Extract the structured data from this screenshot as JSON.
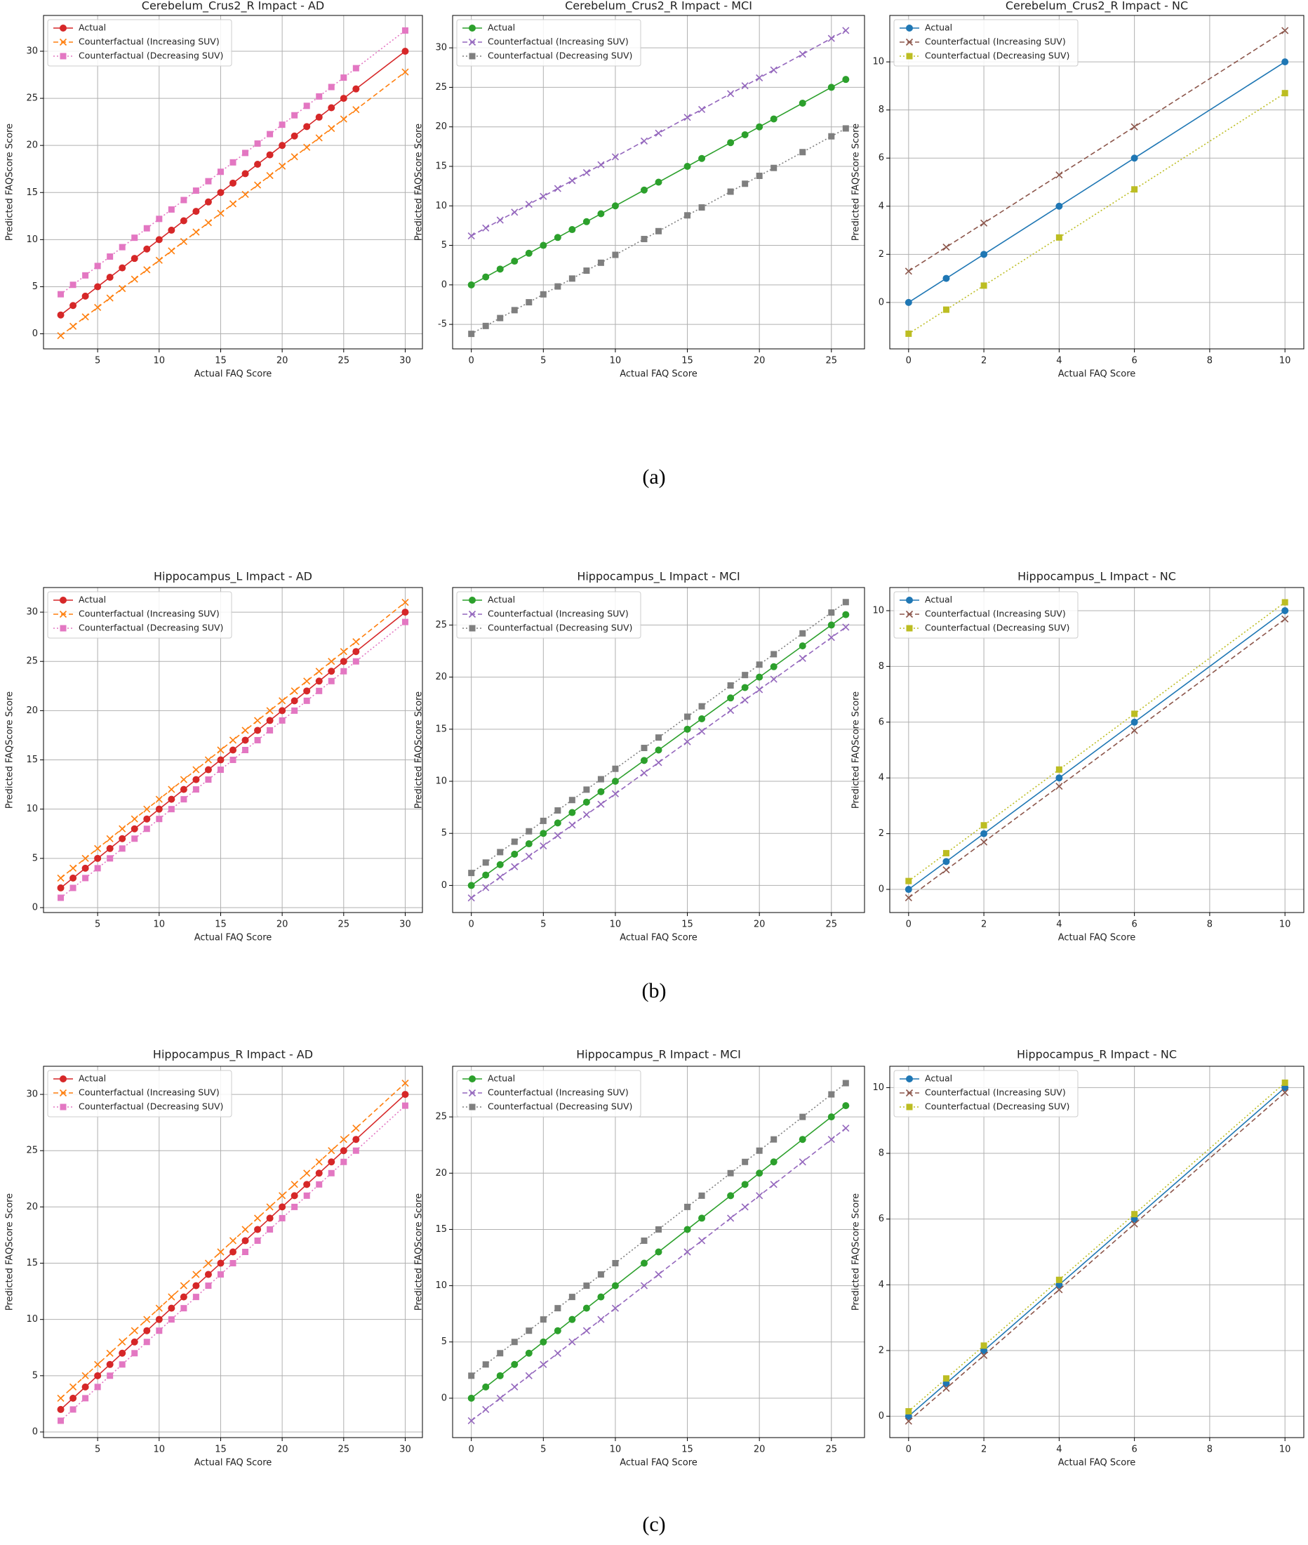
{
  "chart_data": [
    {
      "type": "line",
      "title": "Cerebelum_Crus2_R Impact - AD",
      "xlabel": "Actual FAQ Score",
      "ylabel": "Predicted FAQScore Score",
      "grid": true,
      "legend": "upper left",
      "x": [
        2,
        3,
        4,
        5,
        6,
        7,
        8,
        9,
        10,
        11,
        12,
        13,
        14,
        15,
        16,
        17,
        18,
        19,
        20,
        21,
        22,
        23,
        24,
        25,
        26,
        30
      ],
      "xlim": [
        0.6,
        31.4
      ],
      "xticks": [
        5,
        10,
        15,
        20,
        25,
        30
      ],
      "ylim": [
        -1.6,
        33.8
      ],
      "yticks": [
        0,
        5,
        10,
        15,
        20,
        25,
        30
      ],
      "series": [
        {
          "name": "Actual",
          "color": "#d62728",
          "linestyle": "solid",
          "marker": "o",
          "values": [
            2,
            3,
            4,
            5,
            6,
            7,
            8,
            9,
            10,
            11,
            12,
            13,
            14,
            15,
            16,
            17,
            18,
            19,
            20,
            21,
            22,
            23,
            24,
            25,
            26,
            30
          ]
        },
        {
          "name": "Counterfactual (Increasing SUV)",
          "color": "#ff7f0e",
          "linestyle": "dashed",
          "marker": "x",
          "values": [
            -0.2,
            0.8,
            1.8,
            2.8,
            3.8,
            4.8,
            5.8,
            6.8,
            7.8,
            8.8,
            9.8,
            10.8,
            11.8,
            12.8,
            13.8,
            14.8,
            15.8,
            16.8,
            17.8,
            18.8,
            19.8,
            20.8,
            21.8,
            22.8,
            23.8,
            27.8
          ]
        },
        {
          "name": "Counterfactual (Decreasing SUV)",
          "color": "#e377c2",
          "linestyle": "dotted",
          "marker": "s",
          "values": [
            4.2,
            5.2,
            6.2,
            7.2,
            8.2,
            9.2,
            10.2,
            11.2,
            12.2,
            13.2,
            14.2,
            15.2,
            16.2,
            17.2,
            18.2,
            19.2,
            20.2,
            21.2,
            22.2,
            23.2,
            24.2,
            25.2,
            26.2,
            27.2,
            28.2,
            32.2
          ]
        }
      ]
    },
    {
      "type": "line",
      "title": "Cerebelum_Crus2_R Impact - MCI",
      "xlabel": "Actual FAQ Score",
      "ylabel": "Predicted FAQScore Score",
      "grid": true,
      "legend": "upper left",
      "x": [
        0,
        1,
        2,
        3,
        4,
        5,
        6,
        7,
        8,
        9,
        10,
        12,
        13,
        15,
        16,
        18,
        19,
        20,
        21,
        23,
        25,
        26
      ],
      "xlim": [
        -1.3,
        27.3
      ],
      "xticks": [
        0,
        5,
        10,
        15,
        20,
        25
      ],
      "ylim": [
        -8.1,
        34.1
      ],
      "yticks": [
        -5,
        0,
        5,
        10,
        15,
        20,
        25,
        30
      ],
      "series": [
        {
          "name": "Actual",
          "color": "#2ca02c",
          "linestyle": "solid",
          "marker": "o",
          "values": [
            0,
            1,
            2,
            3,
            4,
            5,
            6,
            7,
            8,
            9,
            10,
            12,
            13,
            15,
            16,
            18,
            19,
            20,
            21,
            23,
            25,
            26
          ]
        },
        {
          "name": "Counterfactual (Increasing SUV)",
          "color": "#9467bd",
          "linestyle": "dashed",
          "marker": "x",
          "values": [
            6.2,
            7.2,
            8.2,
            9.2,
            10.2,
            11.2,
            12.2,
            13.2,
            14.2,
            15.2,
            16.2,
            18.2,
            19.2,
            21.2,
            22.2,
            24.2,
            25.2,
            26.2,
            27.2,
            29.2,
            31.2,
            32.2
          ]
        },
        {
          "name": "Counterfactual (Decreasing SUV)",
          "color": "#7f7f7f",
          "linestyle": "dotted",
          "marker": "s",
          "values": [
            -6.2,
            -5.2,
            -4.2,
            -3.2,
            -2.2,
            -1.2,
            -0.2,
            0.8,
            1.8,
            2.8,
            3.8,
            5.8,
            6.8,
            8.8,
            9.8,
            11.8,
            12.8,
            13.8,
            14.8,
            16.8,
            18.8,
            19.8
          ]
        }
      ]
    },
    {
      "type": "line",
      "title": "Cerebelum_Crus2_R Impact - NC",
      "xlabel": "Actual FAQ Score",
      "ylabel": "Predicted FAQScore Score",
      "grid": true,
      "legend": "upper left",
      "x": [
        0,
        1,
        2,
        4,
        6,
        10
      ],
      "xlim": [
        -0.5,
        10.5
      ],
      "xticks": [
        0,
        2,
        4,
        6,
        8,
        10
      ],
      "ylim": [
        -1.93,
        11.93
      ],
      "yticks": [
        0,
        2,
        4,
        6,
        8,
        10
      ],
      "series": [
        {
          "name": "Actual",
          "color": "#1f77b4",
          "linestyle": "solid",
          "marker": "o",
          "values": [
            0,
            1,
            2,
            4,
            6,
            10
          ]
        },
        {
          "name": "Counterfactual (Increasing SUV)",
          "color": "#8c564b",
          "linestyle": "dashed",
          "marker": "x",
          "values": [
            1.3,
            2.3,
            3.3,
            5.3,
            7.3,
            11.3
          ]
        },
        {
          "name": "Counterfactual (Decreasing SUV)",
          "color": "#bcbd22",
          "linestyle": "dotted",
          "marker": "s",
          "values": [
            -1.3,
            -0.3,
            0.7,
            2.7,
            4.7,
            8.7
          ]
        }
      ]
    },
    {
      "type": "line",
      "title": "Hippocampus_L Impact - AD",
      "xlabel": "Actual FAQ Score",
      "ylabel": "Predicted FAQScore Score",
      "grid": true,
      "legend": "upper left",
      "x": [
        2,
        3,
        4,
        5,
        6,
        7,
        8,
        9,
        10,
        11,
        12,
        13,
        14,
        15,
        16,
        17,
        18,
        19,
        20,
        21,
        22,
        23,
        24,
        25,
        26,
        30
      ],
      "xlim": [
        0.6,
        31.4
      ],
      "xticks": [
        5,
        10,
        15,
        20,
        25,
        30
      ],
      "ylim": [
        -0.5,
        32.5
      ],
      "yticks": [
        0,
        5,
        10,
        15,
        20,
        25,
        30
      ],
      "series": [
        {
          "name": "Actual",
          "color": "#d62728",
          "linestyle": "solid",
          "marker": "o",
          "values": [
            2,
            3,
            4,
            5,
            6,
            7,
            8,
            9,
            10,
            11,
            12,
            13,
            14,
            15,
            16,
            17,
            18,
            19,
            20,
            21,
            22,
            23,
            24,
            25,
            26,
            30
          ]
        },
        {
          "name": "Counterfactual (Increasing SUV)",
          "color": "#ff7f0e",
          "linestyle": "dashed",
          "marker": "x",
          "values": [
            3,
            4,
            5,
            6,
            7,
            8,
            9,
            10,
            11,
            12,
            13,
            14,
            15,
            16,
            17,
            18,
            19,
            20,
            21,
            22,
            23,
            24,
            25,
            26,
            27,
            31
          ]
        },
        {
          "name": "Counterfactual (Decreasing SUV)",
          "color": "#e377c2",
          "linestyle": "dotted",
          "marker": "s",
          "values": [
            1,
            2,
            3,
            4,
            5,
            6,
            7,
            8,
            9,
            10,
            11,
            12,
            13,
            14,
            15,
            16,
            17,
            18,
            19,
            20,
            21,
            22,
            23,
            24,
            25,
            29
          ]
        }
      ]
    },
    {
      "type": "line",
      "title": "Hippocampus_L Impact - MCI",
      "xlabel": "Actual FAQ Score",
      "ylabel": "Predicted FAQScore Score",
      "grid": true,
      "legend": "upper left",
      "x": [
        0,
        1,
        2,
        3,
        4,
        5,
        6,
        7,
        8,
        9,
        10,
        12,
        13,
        15,
        16,
        18,
        19,
        20,
        21,
        23,
        25,
        26
      ],
      "xlim": [
        -1.3,
        27.3
      ],
      "xticks": [
        0,
        5,
        10,
        15,
        20,
        25
      ],
      "ylim": [
        -2.6,
        28.6
      ],
      "yticks": [
        0,
        5,
        10,
        15,
        20,
        25
      ],
      "series": [
        {
          "name": "Actual",
          "color": "#2ca02c",
          "linestyle": "solid",
          "marker": "o",
          "values": [
            0,
            1,
            2,
            3,
            4,
            5,
            6,
            7,
            8,
            9,
            10,
            12,
            13,
            15,
            16,
            18,
            19,
            20,
            21,
            23,
            25,
            26
          ]
        },
        {
          "name": "Counterfactual (Increasing SUV)",
          "color": "#9467bd",
          "linestyle": "dashed",
          "marker": "x",
          "values": [
            -1.2,
            -0.2,
            0.8,
            1.8,
            2.8,
            3.8,
            4.8,
            5.8,
            6.8,
            7.8,
            8.8,
            10.8,
            11.8,
            13.8,
            14.8,
            16.8,
            17.8,
            18.8,
            19.8,
            21.8,
            23.8,
            24.8
          ]
        },
        {
          "name": "Counterfactual (Decreasing SUV)",
          "color": "#7f7f7f",
          "linestyle": "dotted",
          "marker": "s",
          "values": [
            1.2,
            2.2,
            3.2,
            4.2,
            5.2,
            6.2,
            7.2,
            8.2,
            9.2,
            10.2,
            11.2,
            13.2,
            14.2,
            16.2,
            17.2,
            19.2,
            20.2,
            21.2,
            22.2,
            24.2,
            26.2,
            27.2
          ]
        }
      ]
    },
    {
      "type": "line",
      "title": "Hippocampus_L Impact - NC",
      "xlabel": "Actual FAQ Score",
      "ylabel": "Predicted FAQScore Score",
      "grid": true,
      "legend": "upper left",
      "x": [
        0,
        1,
        2,
        4,
        6,
        10
      ],
      "xlim": [
        -0.5,
        10.5
      ],
      "xticks": [
        0,
        2,
        4,
        6,
        8,
        10
      ],
      "ylim": [
        -0.83,
        10.83
      ],
      "yticks": [
        0,
        2,
        4,
        6,
        8,
        10
      ],
      "series": [
        {
          "name": "Actual",
          "color": "#1f77b4",
          "linestyle": "solid",
          "marker": "o",
          "values": [
            0,
            1,
            2,
            4,
            6,
            10
          ]
        },
        {
          "name": "Counterfactual (Increasing SUV)",
          "color": "#8c564b",
          "linestyle": "dashed",
          "marker": "x",
          "values": [
            -0.3,
            0.7,
            1.7,
            3.7,
            5.7,
            9.7
          ]
        },
        {
          "name": "Counterfactual (Decreasing SUV)",
          "color": "#bcbd22",
          "linestyle": "dotted",
          "marker": "s",
          "values": [
            0.3,
            1.3,
            2.3,
            4.3,
            6.3,
            10.3
          ]
        }
      ]
    },
    {
      "type": "line",
      "title": "Hippocampus_R Impact - AD",
      "xlabel": "Actual FAQ Score",
      "ylabel": "Predicted FAQScore Score",
      "grid": true,
      "legend": "upper left",
      "x": [
        2,
        3,
        4,
        5,
        6,
        7,
        8,
        9,
        10,
        11,
        12,
        13,
        14,
        15,
        16,
        17,
        18,
        19,
        20,
        21,
        22,
        23,
        24,
        25,
        26,
        30
      ],
      "xlim": [
        0.6,
        31.4
      ],
      "xticks": [
        5,
        10,
        15,
        20,
        25,
        30
      ],
      "ylim": [
        -0.5,
        32.5
      ],
      "yticks": [
        0,
        5,
        10,
        15,
        20,
        25,
        30
      ],
      "series": [
        {
          "name": "Actual",
          "color": "#d62728",
          "linestyle": "solid",
          "marker": "o",
          "values": [
            2,
            3,
            4,
            5,
            6,
            7,
            8,
            9,
            10,
            11,
            12,
            13,
            14,
            15,
            16,
            17,
            18,
            19,
            20,
            21,
            22,
            23,
            24,
            25,
            26,
            30
          ]
        },
        {
          "name": "Counterfactual (Increasing SUV)",
          "color": "#ff7f0e",
          "linestyle": "dashed",
          "marker": "x",
          "values": [
            3,
            4,
            5,
            6,
            7,
            8,
            9,
            10,
            11,
            12,
            13,
            14,
            15,
            16,
            17,
            18,
            19,
            20,
            21,
            22,
            23,
            24,
            25,
            26,
            27,
            31
          ]
        },
        {
          "name": "Counterfactual (Decreasing SUV)",
          "color": "#e377c2",
          "linestyle": "dotted",
          "marker": "s",
          "values": [
            1,
            2,
            3,
            4,
            5,
            6,
            7,
            8,
            9,
            10,
            11,
            12,
            13,
            14,
            15,
            16,
            17,
            18,
            19,
            20,
            21,
            22,
            23,
            24,
            25,
            29
          ]
        }
      ]
    },
    {
      "type": "line",
      "title": "Hippocampus_R Impact - MCI",
      "xlabel": "Actual FAQ Score",
      "ylabel": "Predicted FAQScore Score",
      "grid": true,
      "legend": "upper left",
      "x": [
        0,
        1,
        2,
        3,
        4,
        5,
        6,
        7,
        8,
        9,
        10,
        12,
        13,
        15,
        16,
        18,
        19,
        20,
        21,
        23,
        25,
        26
      ],
      "xlim": [
        -1.3,
        27.3
      ],
      "xticks": [
        0,
        5,
        10,
        15,
        20,
        25
      ],
      "ylim": [
        -3.5,
        29.5
      ],
      "yticks": [
        0,
        5,
        10,
        15,
        20,
        25
      ],
      "series": [
        {
          "name": "Actual",
          "color": "#2ca02c",
          "linestyle": "solid",
          "marker": "o",
          "values": [
            0,
            1,
            2,
            3,
            4,
            5,
            6,
            7,
            8,
            9,
            10,
            12,
            13,
            15,
            16,
            18,
            19,
            20,
            21,
            23,
            25,
            26
          ]
        },
        {
          "name": "Counterfactual (Increasing SUV)",
          "color": "#9467bd",
          "linestyle": "dashed",
          "marker": "x",
          "values": [
            -2,
            -1,
            0,
            1,
            2,
            3,
            4,
            5,
            6,
            7,
            8,
            10,
            11,
            13,
            14,
            16,
            17,
            18,
            19,
            21,
            23,
            24
          ]
        },
        {
          "name": "Counterfactual (Decreasing SUV)",
          "color": "#7f7f7f",
          "linestyle": "dotted",
          "marker": "s",
          "values": [
            2,
            3,
            4,
            5,
            6,
            7,
            8,
            9,
            10,
            11,
            12,
            14,
            15,
            17,
            18,
            20,
            21,
            22,
            23,
            25,
            27,
            28
          ]
        }
      ]
    },
    {
      "type": "line",
      "title": "Hippocampus_R Impact - NC",
      "xlabel": "Actual FAQ Score",
      "ylabel": "Predicted FAQScore Score",
      "grid": true,
      "legend": "upper left",
      "x": [
        0,
        1,
        2,
        4,
        6,
        10
      ],
      "xlim": [
        -0.5,
        10.5
      ],
      "xticks": [
        0,
        2,
        4,
        6,
        8,
        10
      ],
      "ylim": [
        -0.65,
        10.65
      ],
      "yticks": [
        0,
        2,
        4,
        6,
        8,
        10
      ],
      "series": [
        {
          "name": "Actual",
          "color": "#1f77b4",
          "linestyle": "solid",
          "marker": "o",
          "values": [
            0,
            1,
            2,
            4,
            6,
            10
          ]
        },
        {
          "name": "Counterfactual (Increasing SUV)",
          "color": "#8c564b",
          "linestyle": "dashed",
          "marker": "x",
          "values": [
            -0.15,
            0.85,
            1.85,
            3.85,
            5.85,
            9.85
          ]
        },
        {
          "name": "Counterfactual (Decreasing SUV)",
          "color": "#bcbd22",
          "linestyle": "dotted",
          "marker": "s",
          "values": [
            0.15,
            1.15,
            2.15,
            4.15,
            6.15,
            10.15
          ]
        }
      ]
    }
  ],
  "captions": [
    "(a)",
    "(b)",
    "(c)"
  ]
}
